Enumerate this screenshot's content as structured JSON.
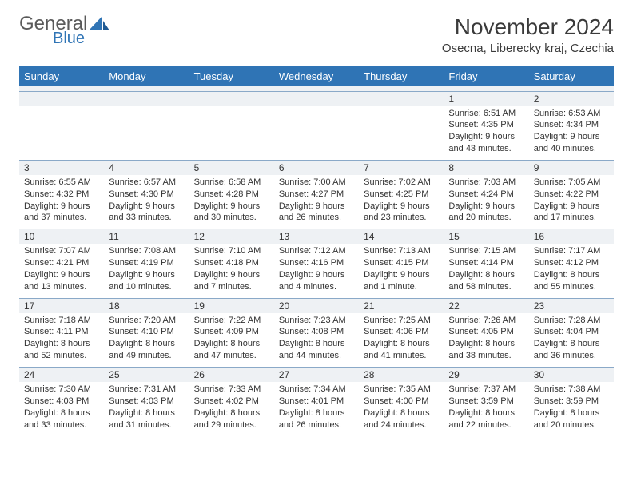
{
  "colors": {
    "accent": "#2f74b5",
    "header_text": "#ffffff",
    "border": "#8aa9c8",
    "daynum_bg": "#eef1f4",
    "body_text": "#333333",
    "logo_gray": "#5a5a5a"
  },
  "logo": {
    "word1": "General",
    "word2": "Blue"
  },
  "title": "November 2024",
  "location": "Osecna, Liberecky kraj, Czechia",
  "weekdays": [
    "Sunday",
    "Monday",
    "Tuesday",
    "Wednesday",
    "Thursday",
    "Friday",
    "Saturday"
  ],
  "calendar": {
    "type": "table",
    "columns": 7,
    "rows": 5,
    "font_size_daynum": 12,
    "font_size_body": 11,
    "header_bg": "#2f74b5",
    "header_font_size": 13
  },
  "weeks": [
    [
      null,
      null,
      null,
      null,
      null,
      {
        "n": "1",
        "sunrise": "Sunrise: 6:51 AM",
        "sunset": "Sunset: 4:35 PM",
        "day1": "Daylight: 9 hours",
        "day2": "and 43 minutes."
      },
      {
        "n": "2",
        "sunrise": "Sunrise: 6:53 AM",
        "sunset": "Sunset: 4:34 PM",
        "day1": "Daylight: 9 hours",
        "day2": "and 40 minutes."
      }
    ],
    [
      {
        "n": "3",
        "sunrise": "Sunrise: 6:55 AM",
        "sunset": "Sunset: 4:32 PM",
        "day1": "Daylight: 9 hours",
        "day2": "and 37 minutes."
      },
      {
        "n": "4",
        "sunrise": "Sunrise: 6:57 AM",
        "sunset": "Sunset: 4:30 PM",
        "day1": "Daylight: 9 hours",
        "day2": "and 33 minutes."
      },
      {
        "n": "5",
        "sunrise": "Sunrise: 6:58 AM",
        "sunset": "Sunset: 4:28 PM",
        "day1": "Daylight: 9 hours",
        "day2": "and 30 minutes."
      },
      {
        "n": "6",
        "sunrise": "Sunrise: 7:00 AM",
        "sunset": "Sunset: 4:27 PM",
        "day1": "Daylight: 9 hours",
        "day2": "and 26 minutes."
      },
      {
        "n": "7",
        "sunrise": "Sunrise: 7:02 AM",
        "sunset": "Sunset: 4:25 PM",
        "day1": "Daylight: 9 hours",
        "day2": "and 23 minutes."
      },
      {
        "n": "8",
        "sunrise": "Sunrise: 7:03 AM",
        "sunset": "Sunset: 4:24 PM",
        "day1": "Daylight: 9 hours",
        "day2": "and 20 minutes."
      },
      {
        "n": "9",
        "sunrise": "Sunrise: 7:05 AM",
        "sunset": "Sunset: 4:22 PM",
        "day1": "Daylight: 9 hours",
        "day2": "and 17 minutes."
      }
    ],
    [
      {
        "n": "10",
        "sunrise": "Sunrise: 7:07 AM",
        "sunset": "Sunset: 4:21 PM",
        "day1": "Daylight: 9 hours",
        "day2": "and 13 minutes."
      },
      {
        "n": "11",
        "sunrise": "Sunrise: 7:08 AM",
        "sunset": "Sunset: 4:19 PM",
        "day1": "Daylight: 9 hours",
        "day2": "and 10 minutes."
      },
      {
        "n": "12",
        "sunrise": "Sunrise: 7:10 AM",
        "sunset": "Sunset: 4:18 PM",
        "day1": "Daylight: 9 hours",
        "day2": "and 7 minutes."
      },
      {
        "n": "13",
        "sunrise": "Sunrise: 7:12 AM",
        "sunset": "Sunset: 4:16 PM",
        "day1": "Daylight: 9 hours",
        "day2": "and 4 minutes."
      },
      {
        "n": "14",
        "sunrise": "Sunrise: 7:13 AM",
        "sunset": "Sunset: 4:15 PM",
        "day1": "Daylight: 9 hours",
        "day2": "and 1 minute."
      },
      {
        "n": "15",
        "sunrise": "Sunrise: 7:15 AM",
        "sunset": "Sunset: 4:14 PM",
        "day1": "Daylight: 8 hours",
        "day2": "and 58 minutes."
      },
      {
        "n": "16",
        "sunrise": "Sunrise: 7:17 AM",
        "sunset": "Sunset: 4:12 PM",
        "day1": "Daylight: 8 hours",
        "day2": "and 55 minutes."
      }
    ],
    [
      {
        "n": "17",
        "sunrise": "Sunrise: 7:18 AM",
        "sunset": "Sunset: 4:11 PM",
        "day1": "Daylight: 8 hours",
        "day2": "and 52 minutes."
      },
      {
        "n": "18",
        "sunrise": "Sunrise: 7:20 AM",
        "sunset": "Sunset: 4:10 PM",
        "day1": "Daylight: 8 hours",
        "day2": "and 49 minutes."
      },
      {
        "n": "19",
        "sunrise": "Sunrise: 7:22 AM",
        "sunset": "Sunset: 4:09 PM",
        "day1": "Daylight: 8 hours",
        "day2": "and 47 minutes."
      },
      {
        "n": "20",
        "sunrise": "Sunrise: 7:23 AM",
        "sunset": "Sunset: 4:08 PM",
        "day1": "Daylight: 8 hours",
        "day2": "and 44 minutes."
      },
      {
        "n": "21",
        "sunrise": "Sunrise: 7:25 AM",
        "sunset": "Sunset: 4:06 PM",
        "day1": "Daylight: 8 hours",
        "day2": "and 41 minutes."
      },
      {
        "n": "22",
        "sunrise": "Sunrise: 7:26 AM",
        "sunset": "Sunset: 4:05 PM",
        "day1": "Daylight: 8 hours",
        "day2": "and 38 minutes."
      },
      {
        "n": "23",
        "sunrise": "Sunrise: 7:28 AM",
        "sunset": "Sunset: 4:04 PM",
        "day1": "Daylight: 8 hours",
        "day2": "and 36 minutes."
      }
    ],
    [
      {
        "n": "24",
        "sunrise": "Sunrise: 7:30 AM",
        "sunset": "Sunset: 4:03 PM",
        "day1": "Daylight: 8 hours",
        "day2": "and 33 minutes."
      },
      {
        "n": "25",
        "sunrise": "Sunrise: 7:31 AM",
        "sunset": "Sunset: 4:03 PM",
        "day1": "Daylight: 8 hours",
        "day2": "and 31 minutes."
      },
      {
        "n": "26",
        "sunrise": "Sunrise: 7:33 AM",
        "sunset": "Sunset: 4:02 PM",
        "day1": "Daylight: 8 hours",
        "day2": "and 29 minutes."
      },
      {
        "n": "27",
        "sunrise": "Sunrise: 7:34 AM",
        "sunset": "Sunset: 4:01 PM",
        "day1": "Daylight: 8 hours",
        "day2": "and 26 minutes."
      },
      {
        "n": "28",
        "sunrise": "Sunrise: 7:35 AM",
        "sunset": "Sunset: 4:00 PM",
        "day1": "Daylight: 8 hours",
        "day2": "and 24 minutes."
      },
      {
        "n": "29",
        "sunrise": "Sunrise: 7:37 AM",
        "sunset": "Sunset: 3:59 PM",
        "day1": "Daylight: 8 hours",
        "day2": "and 22 minutes."
      },
      {
        "n": "30",
        "sunrise": "Sunrise: 7:38 AM",
        "sunset": "Sunset: 3:59 PM",
        "day1": "Daylight: 8 hours",
        "day2": "and 20 minutes."
      }
    ]
  ]
}
